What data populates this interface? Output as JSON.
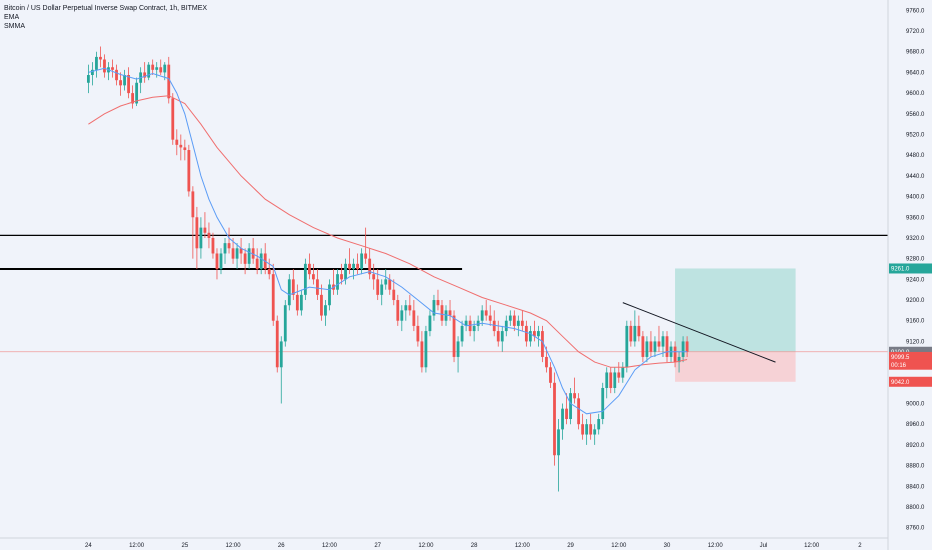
{
  "legend": {
    "symbol": "Bitcoin / US Dollar Perpetual Inverse Swap Contract, 1h, BITMEX",
    "ema": "EMA",
    "smma": "SMMA"
  },
  "colors": {
    "background": "#f0f3fa",
    "up": "#26a69a",
    "down": "#ef5350",
    "ema": "#5b9cf6",
    "smma": "#f06e6e",
    "profit_zone": "#b2dfdb",
    "loss_zone": "#f8c9cd",
    "axis_text": "#131722"
  },
  "badges": [
    {
      "label": "9261.0",
      "value": 9261,
      "color": "#26a69a"
    },
    {
      "label": "9100.0",
      "value": 9100,
      "color": "#787b86"
    },
    {
      "label": "9099.5",
      "value": 9090,
      "color": "#ef5350"
    },
    {
      "label": "00:16",
      "value": 9075,
      "color": "#ef5350"
    },
    {
      "label": "9042.0",
      "value": 9042,
      "color": "#ef5350"
    }
  ],
  "chart_data": {
    "type": "candlestick",
    "title": "Bitcoin / US Dollar Perpetual Inverse Swap Contract, 1h, BITMEX",
    "x_tick_labels": [
      "24",
      "12:00",
      "25",
      "12:00",
      "26",
      "12:00",
      "27",
      "12:00",
      "28",
      "12:00",
      "29",
      "12:00",
      "30",
      "12:00",
      "Jul",
      "12:00",
      "2"
    ],
    "y_tick_labels": [
      "8760.0",
      "8800.0",
      "8840.0",
      "8880.0",
      "8920.0",
      "8960.0",
      "9000.0",
      "9040.0",
      "9080.0",
      "9120.0",
      "9160.0",
      "9200.0",
      "9240.0",
      "9280.0",
      "9320.0",
      "9360.0",
      "9400.0",
      "9440.0",
      "9480.0",
      "9520.0",
      "9560.0",
      "9600.0",
      "9640.0",
      "9680.0",
      "9720.0",
      "9760.0"
    ],
    "ylim": [
      8740,
      9780
    ],
    "x_range_hours": [
      -22,
      199
    ],
    "candles": [
      [
        0,
        9620,
        9655,
        9600,
        9635
      ],
      [
        1,
        9635,
        9660,
        9615,
        9645
      ],
      [
        2,
        9645,
        9680,
        9630,
        9670
      ],
      [
        3,
        9670,
        9690,
        9650,
        9665
      ],
      [
        4,
        9665,
        9675,
        9630,
        9640
      ],
      [
        5,
        9640,
        9660,
        9625,
        9650
      ],
      [
        6,
        9650,
        9665,
        9630,
        9645
      ],
      [
        7,
        9645,
        9655,
        9615,
        9625
      ],
      [
        8,
        9625,
        9640,
        9595,
        9615
      ],
      [
        9,
        9615,
        9645,
        9605,
        9635
      ],
      [
        10,
        9635,
        9650,
        9590,
        9600
      ],
      [
        11,
        9600,
        9615,
        9570,
        9580
      ],
      [
        12,
        9580,
        9630,
        9575,
        9620
      ],
      [
        13,
        9620,
        9650,
        9600,
        9640
      ],
      [
        14,
        9640,
        9660,
        9620,
        9630
      ],
      [
        15,
        9630,
        9660,
        9625,
        9655
      ],
      [
        16,
        9655,
        9665,
        9635,
        9645
      ],
      [
        17,
        9645,
        9660,
        9630,
        9650
      ],
      [
        18,
        9650,
        9665,
        9635,
        9640
      ],
      [
        19,
        9640,
        9660,
        9625,
        9655
      ],
      [
        20,
        9655,
        9670,
        9580,
        9590
      ],
      [
        21,
        9590,
        9600,
        9500,
        9510
      ],
      [
        22,
        9510,
        9530,
        9480,
        9500
      ],
      [
        23,
        9500,
        9520,
        9470,
        9495
      ],
      [
        24,
        9495,
        9510,
        9470,
        9490
      ],
      [
        25,
        9490,
        9500,
        9400,
        9410
      ],
      [
        26,
        9410,
        9420,
        9280,
        9360
      ],
      [
        27,
        9360,
        9380,
        9260,
        9300
      ],
      [
        28,
        9300,
        9360,
        9280,
        9340
      ],
      [
        29,
        9340,
        9370,
        9320,
        9330
      ],
      [
        30,
        9330,
        9350,
        9300,
        9320
      ],
      [
        31,
        9320,
        9330,
        9280,
        9290
      ],
      [
        32,
        9290,
        9300,
        9240,
        9260
      ],
      [
        33,
        9260,
        9300,
        9250,
        9290
      ],
      [
        34,
        9290,
        9320,
        9270,
        9310
      ],
      [
        35,
        9310,
        9340,
        9290,
        9300
      ],
      [
        36,
        9300,
        9320,
        9270,
        9280
      ],
      [
        37,
        9280,
        9310,
        9260,
        9300
      ],
      [
        38,
        9300,
        9320,
        9270,
        9290
      ],
      [
        39,
        9290,
        9300,
        9250,
        9270
      ],
      [
        40,
        9270,
        9310,
        9260,
        9300
      ],
      [
        41,
        9300,
        9320,
        9270,
        9280
      ],
      [
        42,
        9280,
        9300,
        9250,
        9260
      ],
      [
        43,
        9260,
        9300,
        9250,
        9290
      ],
      [
        44,
        9290,
        9310,
        9250,
        9260
      ],
      [
        45,
        9260,
        9280,
        9240,
        9250
      ],
      [
        46,
        9250,
        9270,
        9150,
        9160
      ],
      [
        47,
        9160,
        9170,
        9060,
        9070
      ],
      [
        48,
        9070,
        9130,
        9000,
        9120
      ],
      [
        49,
        9120,
        9200,
        9110,
        9190
      ],
      [
        50,
        9190,
        9250,
        9180,
        9240
      ],
      [
        51,
        9240,
        9260,
        9200,
        9210
      ],
      [
        52,
        9210,
        9230,
        9170,
        9180
      ],
      [
        53,
        9180,
        9220,
        9170,
        9210
      ],
      [
        54,
        9210,
        9280,
        9200,
        9270
      ],
      [
        55,
        9270,
        9290,
        9240,
        9250
      ],
      [
        56,
        9250,
        9270,
        9230,
        9240
      ],
      [
        57,
        9240,
        9260,
        9200,
        9210
      ],
      [
        58,
        9210,
        9230,
        9160,
        9170
      ],
      [
        59,
        9170,
        9200,
        9150,
        9190
      ],
      [
        60,
        9190,
        9240,
        9180,
        9230
      ],
      [
        61,
        9230,
        9260,
        9210,
        9220
      ],
      [
        62,
        9220,
        9260,
        9210,
        9250
      ],
      [
        63,
        9250,
        9270,
        9230,
        9240
      ],
      [
        64,
        9240,
        9280,
        9230,
        9270
      ],
      [
        65,
        9270,
        9300,
        9250,
        9260
      ],
      [
        66,
        9260,
        9280,
        9240,
        9270
      ],
      [
        67,
        9270,
        9290,
        9250,
        9260
      ],
      [
        68,
        9260,
        9300,
        9250,
        9290
      ],
      [
        69,
        9290,
        9340,
        9270,
        9280
      ],
      [
        70,
        9280,
        9300,
        9240,
        9250
      ],
      [
        71,
        9250,
        9270,
        9220,
        9240
      ],
      [
        72,
        9240,
        9260,
        9200,
        9210
      ],
      [
        73,
        9210,
        9240,
        9190,
        9230
      ],
      [
        74,
        9230,
        9260,
        9220,
        9240
      ],
      [
        75,
        9240,
        9250,
        9210,
        9220
      ],
      [
        76,
        9220,
        9240,
        9190,
        9200
      ],
      [
        77,
        9200,
        9210,
        9150,
        9160
      ],
      [
        78,
        9160,
        9190,
        9140,
        9180
      ],
      [
        79,
        9180,
        9200,
        9160,
        9190
      ],
      [
        80,
        9190,
        9210,
        9170,
        9180
      ],
      [
        81,
        9180,
        9200,
        9140,
        9150
      ],
      [
        82,
        9150,
        9170,
        9110,
        9120
      ],
      [
        83,
        9120,
        9140,
        9060,
        9070
      ],
      [
        84,
        9070,
        9150,
        9060,
        9140
      ],
      [
        85,
        9140,
        9180,
        9130,
        9170
      ],
      [
        86,
        9170,
        9210,
        9160,
        9200
      ],
      [
        87,
        9200,
        9220,
        9180,
        9190
      ],
      [
        88,
        9190,
        9200,
        9150,
        9160
      ],
      [
        89,
        9160,
        9190,
        9150,
        9180
      ],
      [
        90,
        9180,
        9200,
        9160,
        9170
      ],
      [
        91,
        9170,
        9180,
        9080,
        9090
      ],
      [
        92,
        9090,
        9130,
        9060,
        9120
      ],
      [
        93,
        9120,
        9160,
        9110,
        9150
      ],
      [
        94,
        9150,
        9170,
        9140,
        9160
      ],
      [
        95,
        9160,
        9170,
        9130,
        9140
      ],
      [
        96,
        9140,
        9160,
        9120,
        9150
      ],
      [
        97,
        9150,
        9170,
        9140,
        9160
      ],
      [
        98,
        9160,
        9190,
        9150,
        9180
      ],
      [
        99,
        9180,
        9200,
        9160,
        9170
      ],
      [
        100,
        9170,
        9190,
        9150,
        9160
      ],
      [
        101,
        9160,
        9180,
        9130,
        9140
      ],
      [
        102,
        9140,
        9160,
        9110,
        9120
      ],
      [
        103,
        9120,
        9150,
        9100,
        9140
      ],
      [
        104,
        9140,
        9170,
        9130,
        9160
      ],
      [
        105,
        9160,
        9180,
        9150,
        9170
      ],
      [
        106,
        9170,
        9180,
        9140,
        9150
      ],
      [
        107,
        9150,
        9170,
        9130,
        9160
      ],
      [
        108,
        9160,
        9180,
        9140,
        9150
      ],
      [
        109,
        9150,
        9160,
        9110,
        9120
      ],
      [
        110,
        9120,
        9150,
        9110,
        9140
      ],
      [
        111,
        9140,
        9160,
        9120,
        9130
      ],
      [
        112,
        9130,
        9150,
        9110,
        9140
      ],
      [
        113,
        9140,
        9150,
        9080,
        9090
      ],
      [
        114,
        9090,
        9110,
        9060,
        9070
      ],
      [
        115,
        9070,
        9080,
        9030,
        9040
      ],
      [
        116,
        9040,
        9060,
        8880,
        8900
      ],
      [
        117,
        8900,
        8970,
        8830,
        8950
      ],
      [
        118,
        8950,
        9000,
        8930,
        8990
      ],
      [
        119,
        8990,
        9020,
        8960,
        8970
      ],
      [
        120,
        8970,
        9030,
        8960,
        9020
      ],
      [
        121,
        9020,
        9050,
        9000,
        9010
      ],
      [
        122,
        9010,
        9020,
        8950,
        8960
      ],
      [
        123,
        8960,
        8980,
        8930,
        8940
      ],
      [
        124,
        8940,
        8970,
        8920,
        8960
      ],
      [
        125,
        8960,
        8980,
        8930,
        8940
      ],
      [
        126,
        8940,
        8960,
        8920,
        8950
      ],
      [
        127,
        8950,
        8980,
        8940,
        8970
      ],
      [
        128,
        8970,
        9040,
        8960,
        9030
      ],
      [
        129,
        9030,
        9070,
        9010,
        9060
      ],
      [
        130,
        9060,
        9070,
        9020,
        9030
      ],
      [
        131,
        9030,
        9070,
        9020,
        9060
      ],
      [
        132,
        9060,
        9080,
        9040,
        9050
      ],
      [
        133,
        9050,
        9080,
        9040,
        9070
      ],
      [
        134,
        9070,
        9160,
        9060,
        9150
      ],
      [
        135,
        9150,
        9160,
        9110,
        9120
      ],
      [
        136,
        9120,
        9180,
        9110,
        9150
      ],
      [
        137,
        9150,
        9170,
        9120,
        9130
      ],
      [
        138,
        9130,
        9140,
        9080,
        9090
      ],
      [
        139,
        9090,
        9130,
        9080,
        9120
      ],
      [
        140,
        9120,
        9140,
        9090,
        9100
      ],
      [
        141,
        9100,
        9130,
        9090,
        9120
      ],
      [
        142,
        9120,
        9150,
        9100,
        9110
      ],
      [
        143,
        9110,
        9140,
        9090,
        9130
      ],
      [
        144,
        9130,
        9140,
        9080,
        9090
      ],
      [
        145,
        9090,
        9120,
        9080,
        9110
      ],
      [
        146,
        9110,
        9120,
        9070,
        9080
      ],
      [
        147,
        9080,
        9100,
        9060,
        9090
      ],
      [
        148,
        9090,
        9130,
        9080,
        9120
      ],
      [
        149,
        9120,
        9130,
        9090,
        9100
      ]
    ],
    "ema": [
      [
        0,
        9640
      ],
      [
        4,
        9648
      ],
      [
        8,
        9636
      ],
      [
        12,
        9627
      ],
      [
        16,
        9638
      ],
      [
        20,
        9628
      ],
      [
        22,
        9600
      ],
      [
        24,
        9560
      ],
      [
        26,
        9500
      ],
      [
        28,
        9440
      ],
      [
        30,
        9395
      ],
      [
        32,
        9360
      ],
      [
        35,
        9320
      ],
      [
        38,
        9300
      ],
      [
        42,
        9285
      ],
      [
        46,
        9265
      ],
      [
        48,
        9220
      ],
      [
        50,
        9210
      ],
      [
        55,
        9225
      ],
      [
        60,
        9220
      ],
      [
        65,
        9245
      ],
      [
        70,
        9255
      ],
      [
        74,
        9245
      ],
      [
        78,
        9225
      ],
      [
        82,
        9200
      ],
      [
        86,
        9175
      ],
      [
        90,
        9170
      ],
      [
        94,
        9150
      ],
      [
        98,
        9155
      ],
      [
        102,
        9150
      ],
      [
        106,
        9145
      ],
      [
        110,
        9135
      ],
      [
        113,
        9120
      ],
      [
        116,
        9070
      ],
      [
        118,
        9030
      ],
      [
        120,
        9000
      ],
      [
        124,
        8980
      ],
      [
        128,
        8985
      ],
      [
        132,
        9015
      ],
      [
        136,
        9065
      ],
      [
        140,
        9090
      ],
      [
        144,
        9100
      ],
      [
        149,
        9100
      ]
    ],
    "smma": [
      [
        0,
        9540
      ],
      [
        4,
        9560
      ],
      [
        8,
        9575
      ],
      [
        12,
        9585
      ],
      [
        16,
        9592
      ],
      [
        20,
        9595
      ],
      [
        24,
        9580
      ],
      [
        28,
        9540
      ],
      [
        32,
        9495
      ],
      [
        38,
        9440
      ],
      [
        44,
        9395
      ],
      [
        50,
        9365
      ],
      [
        56,
        9340
      ],
      [
        62,
        9320
      ],
      [
        68,
        9305
      ],
      [
        74,
        9290
      ],
      [
        80,
        9270
      ],
      [
        86,
        9245
      ],
      [
        92,
        9225
      ],
      [
        98,
        9205
      ],
      [
        104,
        9190
      ],
      [
        110,
        9175
      ],
      [
        114,
        9160
      ],
      [
        118,
        9130
      ],
      [
        122,
        9100
      ],
      [
        126,
        9080
      ],
      [
        130,
        9070
      ],
      [
        134,
        9070
      ],
      [
        138,
        9075
      ],
      [
        142,
        9078
      ],
      [
        146,
        9080
      ],
      [
        149,
        9085
      ]
    ],
    "horizontal_lines": [
      {
        "value": 9325,
        "from_hour": -22
      },
      {
        "value": 9260,
        "from_hour": -22,
        "to_hour": 93
      }
    ],
    "trendline": {
      "from": [
        133,
        9195
      ],
      "to": [
        171,
        9080
      ]
    },
    "position": {
      "entry": 9100,
      "target": 9261,
      "stop": 9042,
      "from_hour": 146,
      "to_hour": 176
    },
    "last_price_line": 9100
  }
}
